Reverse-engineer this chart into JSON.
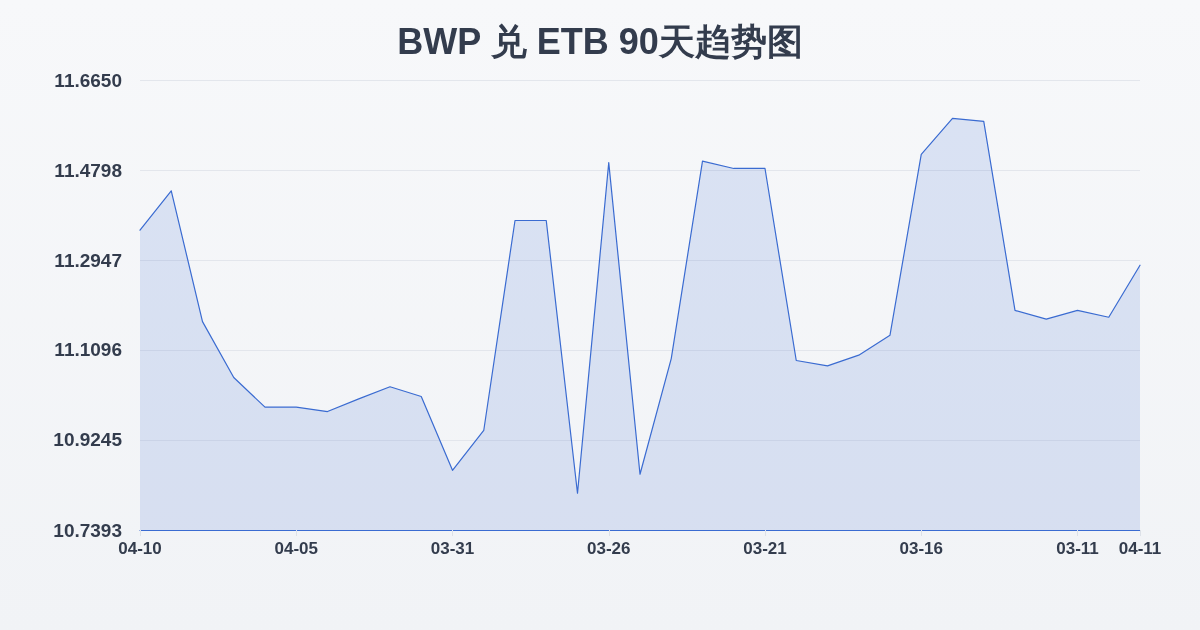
{
  "chart_data": {
    "type": "area",
    "title": "BWP 兑 ETB 90天趋势图",
    "categories": [
      "04-10",
      null,
      null,
      null,
      null,
      "04-05",
      null,
      null,
      null,
      null,
      "03-31",
      null,
      null,
      null,
      null,
      "03-26",
      null,
      null,
      null,
      null,
      "03-21",
      null,
      null,
      null,
      null,
      "03-16",
      null,
      null,
      null,
      null,
      "03-11",
      null,
      "04-11"
    ],
    "values": [
      11.356,
      11.437,
      11.168,
      11.053,
      10.992,
      10.992,
      10.983,
      11.009,
      11.034,
      11.014,
      10.862,
      10.944,
      11.376,
      11.376,
      10.815,
      11.495,
      10.854,
      11.092,
      11.498,
      11.483,
      11.483,
      11.088,
      11.077,
      11.099,
      11.14,
      11.512,
      11.586,
      11.58,
      11.191,
      11.173,
      11.191,
      11.177,
      11.284
    ],
    "color": "#3a6bd1",
    "ylim": [
      10.7393,
      11.665
    ],
    "yticks": [
      10.7393,
      10.9245,
      11.1096,
      11.2947,
      11.4798,
      {
        "value": 11.665,
        "label": "11.6650"
      }
    ],
    "grid": "y",
    "marker": "none",
    "line_style": "solid"
  }
}
